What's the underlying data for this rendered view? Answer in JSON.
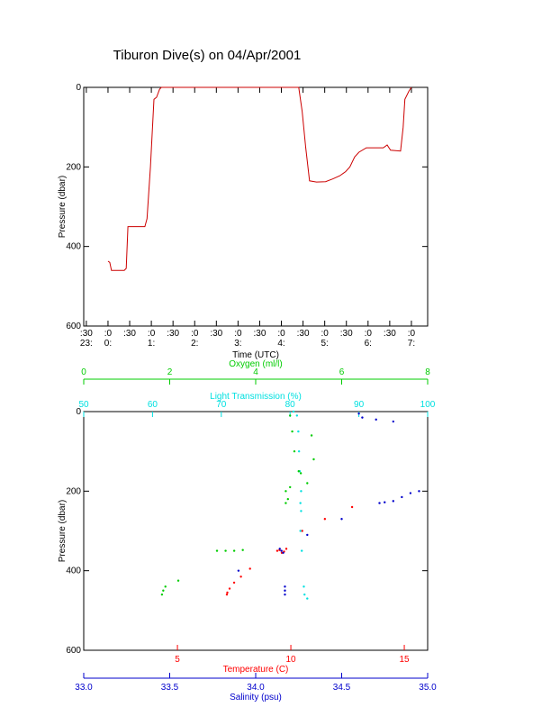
{
  "chart_data": [
    {
      "type": "line",
      "title": "Tiburon Dive(s) on 04/Apr/2001",
      "xlabel": "Time (UTC)",
      "ylabel": "Pressure (dbar)",
      "color": "#cc0000",
      "x": [
        0.0,
        0.04,
        0.08,
        0.375,
        0.42,
        0.46,
        0.85,
        0.9,
        0.98,
        1.06,
        1.12,
        1.19,
        1.23,
        4.4,
        4.48,
        4.56,
        4.65,
        4.81,
        5.02,
        5.19,
        5.35,
        5.48,
        5.58,
        5.69,
        5.79,
        5.96,
        6.35,
        6.44,
        6.52,
        6.75,
        6.81,
        6.85,
        6.94,
        7.0
      ],
      "values": [
        437,
        440,
        460,
        460,
        455,
        350,
        350,
        330,
        200,
        30,
        25,
        5,
        0,
        0,
        60,
        150,
        235,
        238,
        237,
        230,
        222,
        212,
        200,
        175,
        163,
        152,
        152,
        145,
        158,
        160,
        100,
        30,
        10,
        0
      ],
      "xlim": [
        -0.56,
        7.375
      ],
      "xticks": [
        {
          "value": -0.5,
          "label": ":30",
          "hour": "23:"
        },
        {
          "value": 0,
          "label": ":0",
          "hour": "0:"
        },
        {
          "value": 0.5,
          "label": ":30"
        },
        {
          "value": 1,
          "label": ":0",
          "hour": "1:"
        },
        {
          "value": 1.5,
          "label": ":30"
        },
        {
          "value": 2,
          "label": ":0",
          "hour": "2:"
        },
        {
          "value": 2.5,
          "label": ":30"
        },
        {
          "value": 3,
          "label": ":0",
          "hour": "3:"
        },
        {
          "value": 3.5,
          "label": ":30"
        },
        {
          "value": 4,
          "label": ":0",
          "hour": "4:"
        },
        {
          "value": 4.5,
          "label": ":30"
        },
        {
          "value": 5,
          "label": ":0",
          "hour": "5:"
        },
        {
          "value": 5.5,
          "label": ":30"
        },
        {
          "value": 6,
          "label": ":0",
          "hour": "6:"
        },
        {
          "value": 6.5,
          "label": ":30"
        },
        {
          "value": 7,
          "label": ":0",
          "hour": "7:"
        }
      ],
      "ylim": [
        600,
        0
      ],
      "yticks": [
        0,
        200,
        400,
        600
      ]
    },
    {
      "type": "scatter",
      "ylabel": "Pressure (dbar)",
      "ylim": [
        600,
        0
      ],
      "yticks": [
        0,
        200,
        400,
        600
      ],
      "series": [
        {
          "name": "Temperature (C)",
          "color": "#ff0000",
          "side": "bottom",
          "xlim": [
            0.87,
            16.03
          ],
          "xticks": [
            5,
            10,
            15
          ],
          "x": [
            7.18,
            7.2,
            7.3,
            7.5,
            7.8,
            8.2,
            9.4,
            9.5,
            9.7,
            9.8,
            9.6,
            10.5,
            11.5,
            12.7
          ],
          "values": [
            460,
            455,
            445,
            430,
            415,
            395,
            350,
            348,
            352,
            345,
            355,
            300,
            270,
            240
          ]
        },
        {
          "name": "Light Transmission (%)",
          "color": "#00e0e0",
          "side": "top",
          "xlim": [
            50,
            100
          ],
          "xticks": [
            50,
            60,
            70,
            80,
            90,
            100
          ],
          "x": [
            82.1,
            82.0,
            81.7,
            81.5,
            81.6,
            81.5,
            81.6,
            81.4,
            81.3,
            81.2,
            81.0,
            80.5,
            82.5
          ],
          "values": [
            460,
            440,
            350,
            300,
            250,
            230,
            200,
            150,
            100,
            50,
            10,
            0,
            470
          ]
        },
        {
          "name": "Salinity (psu)",
          "color": "#0000cc",
          "side": "bottom",
          "xlim": [
            33,
            35
          ],
          "xticks": [
            {
              "value": 33,
              "label": "33.0"
            },
            33.5,
            {
              "value": 34,
              "label": "34.0"
            },
            34.5,
            {
              "value": 35,
              "label": "35.0"
            }
          ],
          "x": [
            34.17,
            34.17,
            34.17,
            34.15,
            34.14,
            34.16,
            34.72,
            34.75,
            34.8,
            34.85,
            34.9,
            34.95,
            34.6,
            34.62,
            34.7,
            34.8,
            34.5,
            34.3,
            33.9
          ],
          "values": [
            460,
            450,
            440,
            350,
            345,
            355,
            230,
            228,
            225,
            215,
            205,
            200,
            5,
            15,
            20,
            25,
            270,
            310,
            400
          ]
        },
        {
          "name": "Oxygen (ml/l)",
          "color": "#00cc00",
          "side": "top",
          "xlim": [
            0,
            8
          ],
          "xticks": [
            0,
            2,
            4,
            6,
            8
          ],
          "x": [
            1.82,
            1.85,
            1.9,
            2.2,
            3.1,
            3.3,
            3.5,
            3.7,
            4.7,
            4.75,
            4.7,
            4.8,
            5.0,
            5.05,
            4.9,
            4.85,
            4.8,
            5.3,
            5.35,
            5.2
          ],
          "values": [
            460,
            450,
            440,
            425,
            350,
            350,
            350,
            348,
            230,
            220,
            200,
            190,
            150,
            155,
            100,
            50,
            10,
            60,
            120,
            180
          ]
        }
      ]
    }
  ]
}
